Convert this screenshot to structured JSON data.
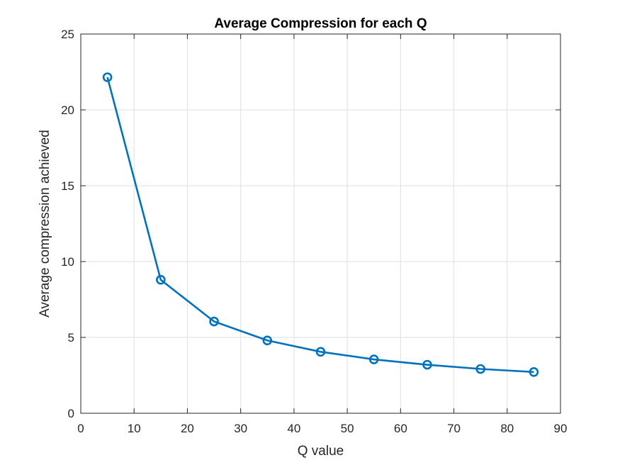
{
  "chart_data": {
    "type": "line",
    "title": "Average Compression for each Q",
    "xlabel": "Q value",
    "ylabel": "Average compression achieved",
    "xlim": [
      0,
      90
    ],
    "ylim": [
      0,
      25
    ],
    "xticks": [
      0,
      10,
      20,
      30,
      40,
      50,
      60,
      70,
      80,
      90
    ],
    "yticks": [
      0,
      5,
      10,
      15,
      20,
      25
    ],
    "grid": true,
    "marker": "circle",
    "series": [
      {
        "x": [
          5,
          15,
          25,
          35,
          45,
          55,
          65,
          75,
          85
        ],
        "values": [
          22.15,
          8.8,
          6.05,
          4.8,
          4.05,
          3.55,
          3.2,
          2.92,
          2.72
        ],
        "color": "#0072BD"
      }
    ]
  }
}
